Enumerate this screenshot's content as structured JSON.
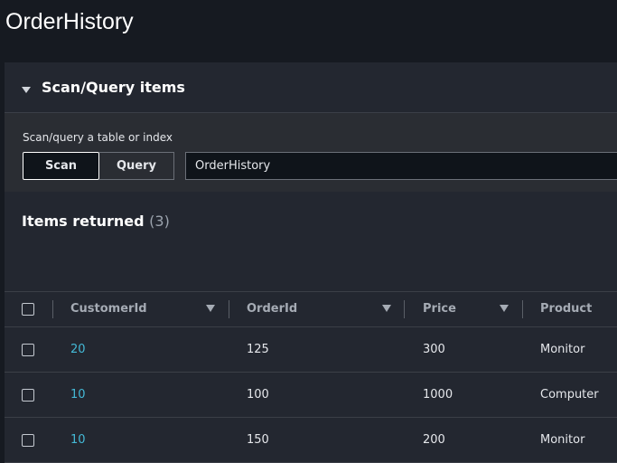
{
  "page": {
    "title": "OrderHistory"
  },
  "section": {
    "title": "Scan/Query items",
    "label": "Scan/query a table or index",
    "scan_label": "Scan",
    "query_label": "Query",
    "table_value": "OrderHistory"
  },
  "items": {
    "title": "Items returned",
    "count": "(3)",
    "columns": [
      "CustomerId",
      "OrderId",
      "Price",
      "Product"
    ],
    "rows": [
      {
        "CustomerId": "20",
        "OrderId": "125",
        "Price": "300",
        "Product": "Monitor"
      },
      {
        "CustomerId": "10",
        "OrderId": "100",
        "Price": "1000",
        "Product": "Computer"
      },
      {
        "CustomerId": "10",
        "OrderId": "150",
        "Price": "200",
        "Product": "Monitor"
      }
    ]
  },
  "colors": {
    "link": "#44b9d6",
    "background": "#161a21",
    "panel": "#232730"
  }
}
